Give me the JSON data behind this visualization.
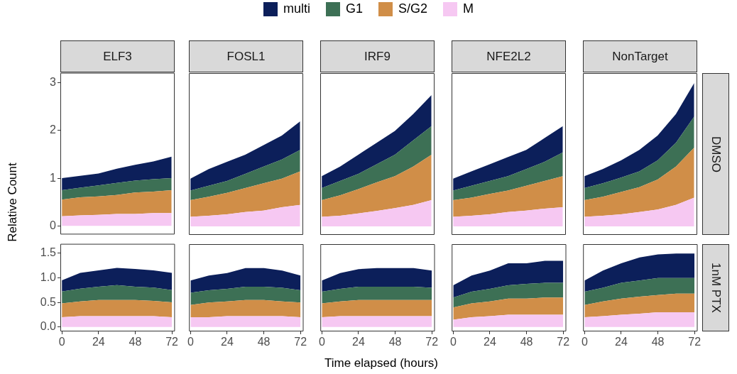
{
  "chart_data": [
    {
      "type": "area",
      "title": "ELF3",
      "ylabel": "Relative Count",
      "legend": "top",
      "stacked": true,
      "tick_labels": "y",
      "x": [
        0,
        12,
        24,
        36,
        48,
        60,
        72
      ],
      "xlim": [
        -1,
        74
      ],
      "ylim": [
        -0.18,
        3.21
      ],
      "yticks": [
        0,
        1,
        2,
        3
      ],
      "series": [
        {
          "name": "M",
          "color": "#f6c8f2",
          "values": [
            0.2,
            0.22,
            0.23,
            0.25,
            0.25,
            0.27,
            0.27
          ]
        },
        {
          "name": "S/G2",
          "color": "#d08e48",
          "values": [
            0.35,
            0.38,
            0.39,
            0.4,
            0.45,
            0.45,
            0.48
          ]
        },
        {
          "name": "G1",
          "color": "#3d7055",
          "values": [
            0.2,
            0.2,
            0.23,
            0.25,
            0.25,
            0.26,
            0.25
          ]
        },
        {
          "name": "multi",
          "color": "#0c1f5a",
          "values": [
            0.25,
            0.25,
            0.25,
            0.3,
            0.33,
            0.37,
            0.45
          ]
        }
      ]
    },
    {
      "type": "area",
      "title": "FOSL1",
      "stacked": true,
      "tick_labels": false,
      "x": [
        0,
        12,
        24,
        36,
        48,
        60,
        72
      ],
      "xlim": [
        -1,
        74
      ],
      "ylim": [
        -0.18,
        3.21
      ],
      "series": [
        {
          "color": "#f6c8f2",
          "values": [
            0.2,
            0.22,
            0.25,
            0.3,
            0.33,
            0.4,
            0.45
          ]
        },
        {
          "color": "#d08e48",
          "values": [
            0.35,
            0.4,
            0.45,
            0.5,
            0.57,
            0.6,
            0.7
          ]
        },
        {
          "color": "#3d7055",
          "values": [
            0.2,
            0.23,
            0.25,
            0.3,
            0.35,
            0.4,
            0.45
          ]
        },
        {
          "color": "#0c1f5a",
          "values": [
            0.25,
            0.35,
            0.4,
            0.4,
            0.45,
            0.5,
            0.6
          ]
        }
      ]
    },
    {
      "type": "area",
      "title": "IRF9",
      "stacked": true,
      "tick_labels": false,
      "x": [
        0,
        12,
        24,
        36,
        48,
        60,
        72
      ],
      "xlim": [
        -1,
        74
      ],
      "ylim": [
        -0.18,
        3.21
      ],
      "series": [
        {
          "color": "#f6c8f2",
          "values": [
            0.2,
            0.22,
            0.27,
            0.32,
            0.38,
            0.45,
            0.55
          ]
        },
        {
          "color": "#d08e48",
          "values": [
            0.35,
            0.43,
            0.51,
            0.6,
            0.67,
            0.8,
            0.95
          ]
        },
        {
          "color": "#3d7055",
          "values": [
            0.25,
            0.3,
            0.32,
            0.38,
            0.45,
            0.55,
            0.6
          ]
        },
        {
          "color": "#0c1f5a",
          "values": [
            0.25,
            0.3,
            0.4,
            0.45,
            0.5,
            0.55,
            0.65
          ]
        }
      ]
    },
    {
      "type": "area",
      "title": "NFE2L2",
      "stacked": true,
      "tick_labels": false,
      "x": [
        0,
        12,
        24,
        36,
        48,
        60,
        72
      ],
      "xlim": [
        -1,
        74
      ],
      "ylim": [
        -0.18,
        3.21
      ],
      "series": [
        {
          "color": "#f6c8f2",
          "values": [
            0.2,
            0.22,
            0.25,
            0.3,
            0.33,
            0.37,
            0.4
          ]
        },
        {
          "color": "#d08e48",
          "values": [
            0.35,
            0.38,
            0.43,
            0.45,
            0.52,
            0.58,
            0.65
          ]
        },
        {
          "color": "#3d7055",
          "values": [
            0.2,
            0.25,
            0.27,
            0.3,
            0.35,
            0.4,
            0.5
          ]
        },
        {
          "color": "#0c1f5a",
          "values": [
            0.25,
            0.3,
            0.35,
            0.4,
            0.4,
            0.5,
            0.55
          ]
        }
      ]
    },
    {
      "type": "area",
      "title": "NonTarget",
      "annotations": [
        "DMSO"
      ],
      "stacked": true,
      "tick_labels": false,
      "x": [
        0,
        12,
        24,
        36,
        48,
        60,
        72
      ],
      "xlim": [
        -1,
        74
      ],
      "ylim": [
        -0.18,
        3.21
      ],
      "series": [
        {
          "color": "#f6c8f2",
          "values": [
            0.2,
            0.22,
            0.25,
            0.3,
            0.35,
            0.45,
            0.6
          ]
        },
        {
          "color": "#d08e48",
          "values": [
            0.35,
            0.4,
            0.47,
            0.52,
            0.63,
            0.8,
            1.05
          ]
        },
        {
          "color": "#3d7055",
          "values": [
            0.25,
            0.28,
            0.3,
            0.33,
            0.4,
            0.5,
            0.65
          ]
        },
        {
          "color": "#0c1f5a",
          "values": [
            0.25,
            0.3,
            0.36,
            0.45,
            0.52,
            0.6,
            0.7
          ]
        }
      ]
    },
    {
      "type": "area",
      "stacked": true,
      "x": [
        0,
        12,
        24,
        36,
        48,
        60,
        72
      ],
      "xlim": [
        -1,
        74
      ],
      "xticks": [
        0,
        24,
        48,
        72
      ],
      "ylim": [
        -0.09,
        1.69
      ],
      "yticks": [
        {
          "value": 0,
          "label": "0.0"
        },
        0.5,
        {
          "value": 1,
          "label": "1.0"
        },
        1.5
      ],
      "series": [
        {
          "color": "#f6c8f2",
          "values": [
            0.2,
            0.22,
            0.22,
            0.22,
            0.22,
            0.22,
            0.2
          ]
        },
        {
          "color": "#d08e48",
          "values": [
            0.28,
            0.3,
            0.33,
            0.33,
            0.33,
            0.31,
            0.3
          ]
        },
        {
          "color": "#3d7055",
          "values": [
            0.24,
            0.26,
            0.27,
            0.3,
            0.27,
            0.27,
            0.25
          ]
        },
        {
          "color": "#0c1f5a",
          "values": [
            0.23,
            0.32,
            0.33,
            0.35,
            0.36,
            0.35,
            0.35
          ]
        }
      ]
    },
    {
      "type": "area",
      "stacked": true,
      "tick_labels": "x",
      "x": [
        0,
        12,
        24,
        36,
        48,
        60,
        72
      ],
      "xlim": [
        -1,
        74
      ],
      "xticks": [
        0,
        24,
        48,
        72
      ],
      "ylim": [
        -0.09,
        1.69
      ],
      "series": [
        {
          "color": "#f6c8f2",
          "values": [
            0.2,
            0.2,
            0.22,
            0.22,
            0.22,
            0.22,
            0.2
          ]
        },
        {
          "color": "#d08e48",
          "values": [
            0.25,
            0.3,
            0.3,
            0.33,
            0.33,
            0.3,
            0.3
          ]
        },
        {
          "color": "#3d7055",
          "values": [
            0.25,
            0.25,
            0.26,
            0.27,
            0.27,
            0.28,
            0.25
          ]
        },
        {
          "color": "#0c1f5a",
          "values": [
            0.25,
            0.3,
            0.32,
            0.38,
            0.38,
            0.35,
            0.3
          ]
        }
      ]
    },
    {
      "type": "area",
      "xlabel": "Time elapsed (hours)",
      "stacked": true,
      "tick_labels": "x",
      "x": [
        0,
        12,
        24,
        36,
        48,
        60,
        72
      ],
      "xlim": [
        -1,
        74
      ],
      "xticks": [
        0,
        24,
        48,
        72
      ],
      "ylim": [
        -0.09,
        1.69
      ],
      "series": [
        {
          "color": "#f6c8f2",
          "values": [
            0.2,
            0.22,
            0.22,
            0.22,
            0.22,
            0.22,
            0.22
          ]
        },
        {
          "color": "#d08e48",
          "values": [
            0.28,
            0.3,
            0.33,
            0.33,
            0.33,
            0.33,
            0.33
          ]
        },
        {
          "color": "#3d7055",
          "values": [
            0.24,
            0.26,
            0.27,
            0.27,
            0.27,
            0.27,
            0.25
          ]
        },
        {
          "color": "#0c1f5a",
          "values": [
            0.23,
            0.32,
            0.36,
            0.38,
            0.38,
            0.38,
            0.35
          ]
        }
      ]
    },
    {
      "type": "area",
      "stacked": true,
      "tick_labels": "x",
      "x": [
        0,
        12,
        24,
        36,
        48,
        60,
        72
      ],
      "xlim": [
        -1,
        74
      ],
      "xticks": [
        0,
        24,
        48,
        72
      ],
      "ylim": [
        -0.09,
        1.69
      ],
      "series": [
        {
          "color": "#f6c8f2",
          "values": [
            0.15,
            0.2,
            0.22,
            0.25,
            0.25,
            0.25,
            0.25
          ]
        },
        {
          "color": "#d08e48",
          "values": [
            0.25,
            0.28,
            0.3,
            0.33,
            0.33,
            0.35,
            0.35
          ]
        },
        {
          "color": "#3d7055",
          "values": [
            0.2,
            0.24,
            0.26,
            0.27,
            0.3,
            0.3,
            0.3
          ]
        },
        {
          "color": "#0c1f5a",
          "values": [
            0.25,
            0.33,
            0.37,
            0.45,
            0.42,
            0.45,
            0.45
          ]
        }
      ]
    },
    {
      "type": "area",
      "annotations": [
        "1nM PTX"
      ],
      "stacked": true,
      "tick_labels": "x",
      "x": [
        0,
        12,
        24,
        36,
        48,
        60,
        72
      ],
      "xlim": [
        -1,
        74
      ],
      "xticks": [
        0,
        24,
        48,
        72
      ],
      "ylim": [
        -0.09,
        1.69
      ],
      "series": [
        {
          "color": "#f6c8f2",
          "values": [
            0.2,
            0.22,
            0.25,
            0.27,
            0.3,
            0.3,
            0.3
          ]
        },
        {
          "color": "#d08e48",
          "values": [
            0.25,
            0.3,
            0.33,
            0.35,
            0.35,
            0.38,
            0.38
          ]
        },
        {
          "color": "#3d7055",
          "values": [
            0.27,
            0.28,
            0.32,
            0.33,
            0.35,
            0.32,
            0.32
          ]
        },
        {
          "color": "#0c1f5a",
          "values": [
            0.23,
            0.35,
            0.4,
            0.47,
            0.48,
            0.5,
            0.5
          ]
        }
      ]
    }
  ]
}
